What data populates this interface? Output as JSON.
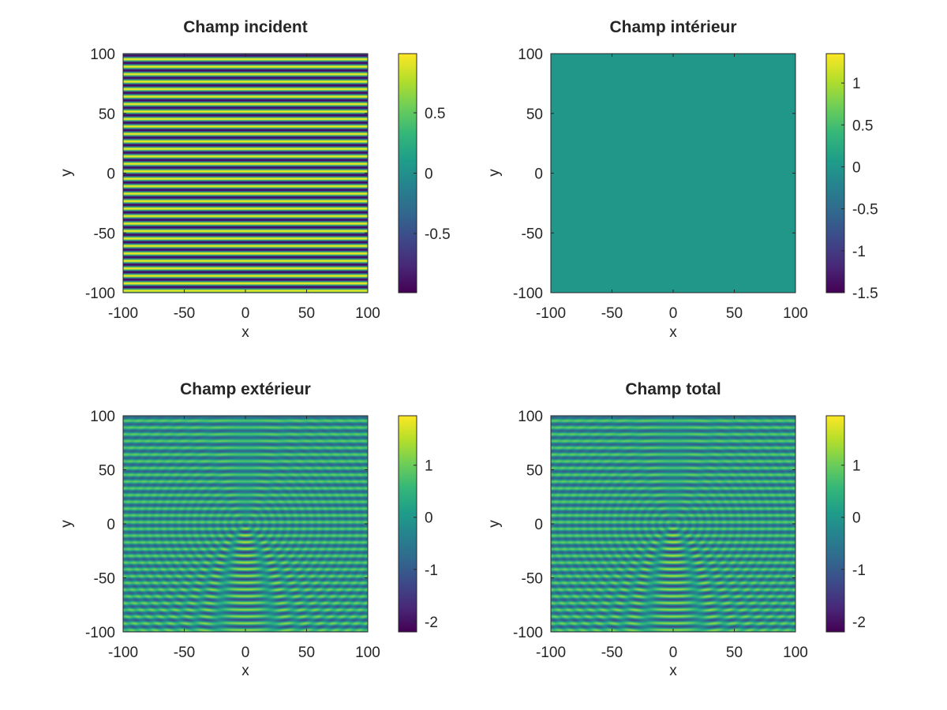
{
  "colormap": [
    "#440154",
    "#482878",
    "#3e4989",
    "#31688e",
    "#26828e",
    "#1f9e89",
    "#35b779",
    "#6ece58",
    "#b5de2b",
    "#fde725"
  ],
  "chart_data": [
    {
      "type": "heatmap",
      "title": "Champ incident",
      "xlabel": "x",
      "ylabel": "y",
      "xlim": [
        -100,
        100
      ],
      "ylim": [
        -100,
        100
      ],
      "xticks": [
        -100,
        -50,
        0,
        50,
        100
      ],
      "yticks": [
        -100,
        -50,
        0,
        50,
        100
      ],
      "colorbar": {
        "min": -0.99,
        "max": 0.99,
        "ticks": [
          -0.5,
          0,
          0.5
        ]
      },
      "field": {
        "pattern": "plane-wave-y",
        "stripe_count": 32
      }
    },
    {
      "type": "heatmap",
      "title": "Champ intérieur",
      "xlabel": "x",
      "ylabel": "y",
      "xlim": [
        -100,
        100
      ],
      "ylim": [
        -100,
        100
      ],
      "xticks": [
        -100,
        -50,
        0,
        50,
        100
      ],
      "yticks": [
        -100,
        -50,
        0,
        50,
        100
      ],
      "colorbar": {
        "min": -1.5,
        "max": 1.35,
        "ticks": [
          -1.5,
          -1,
          -0.5,
          0,
          0.5,
          1
        ]
      },
      "field": {
        "pattern": "uniform",
        "value": 0
      }
    },
    {
      "type": "heatmap",
      "title": "Champ extérieur",
      "xlabel": "x",
      "ylabel": "y",
      "xlim": [
        -100,
        100
      ],
      "ylim": [
        -100,
        100
      ],
      "xticks": [
        -100,
        -50,
        0,
        50,
        100
      ],
      "yticks": [
        -100,
        -50,
        0,
        50,
        100
      ],
      "colorbar": {
        "min": -2.2,
        "max": 1.95,
        "ticks": [
          -2,
          -1,
          0,
          1
        ]
      },
      "field": {
        "pattern": "scattered-wave",
        "stripe_count": 32,
        "scatterer": [
          0,
          0
        ]
      }
    },
    {
      "type": "heatmap",
      "title": "Champ total",
      "xlabel": "x",
      "ylabel": "y",
      "xlim": [
        -100,
        100
      ],
      "ylim": [
        -100,
        100
      ],
      "xticks": [
        -100,
        -50,
        0,
        50,
        100
      ],
      "yticks": [
        -100,
        -50,
        0,
        50,
        100
      ],
      "colorbar": {
        "min": -2.2,
        "max": 1.95,
        "ticks": [
          -2,
          -1,
          0,
          1
        ]
      },
      "field": {
        "pattern": "scattered-wave",
        "stripe_count": 32,
        "scatterer": [
          0,
          0
        ]
      }
    }
  ]
}
